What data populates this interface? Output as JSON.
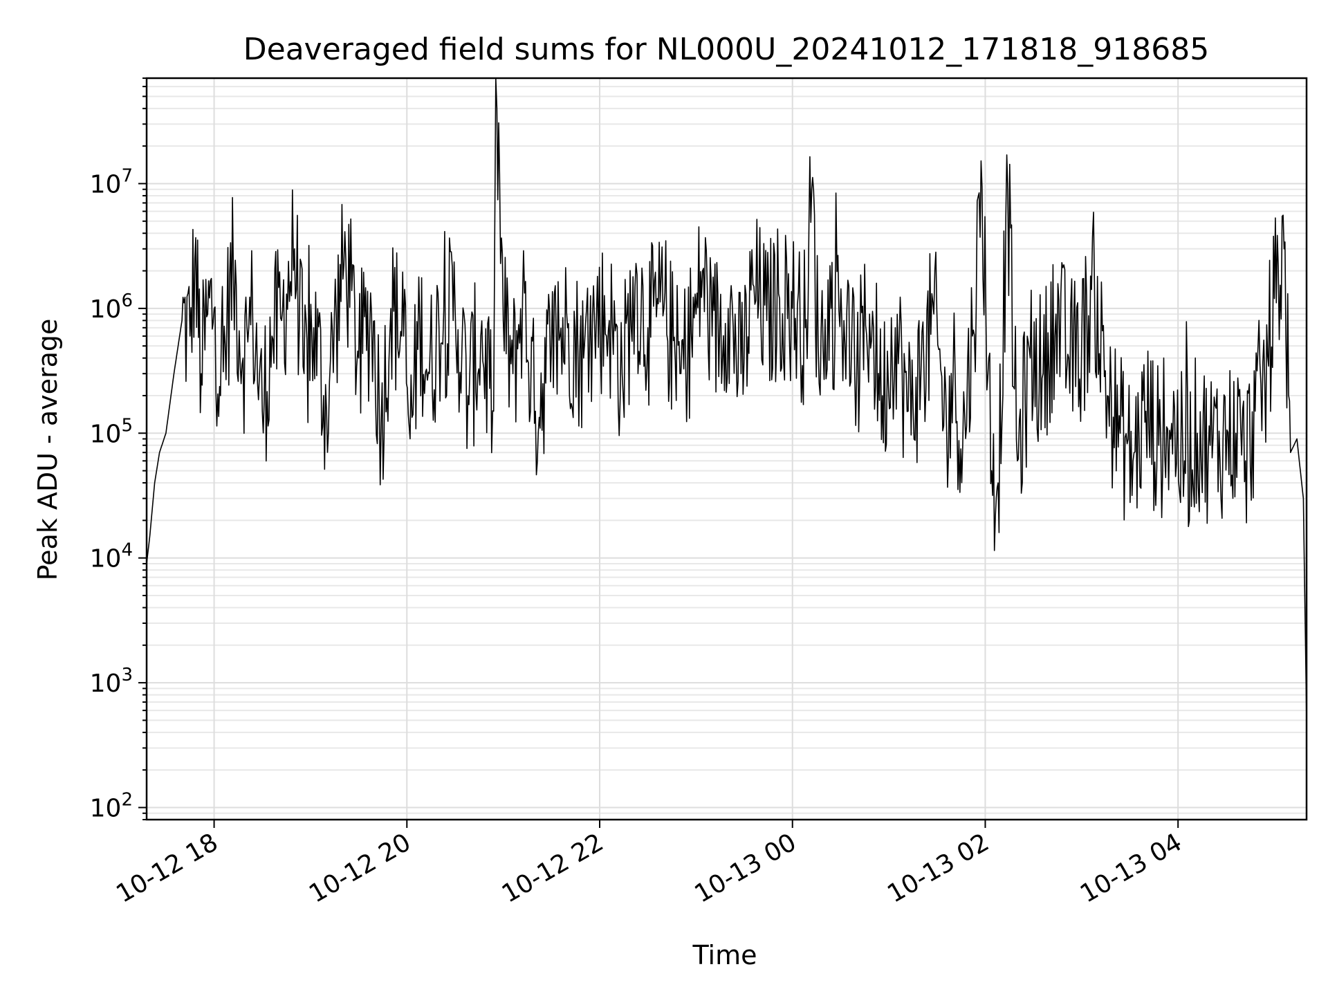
{
  "chart_data": {
    "type": "line",
    "title": "Deaveraged field sums for NL000U_20241012_171818_918685",
    "xlabel": "Time",
    "ylabel": "Peak ADU - average",
    "yscale": "log",
    "ylim": [
      80,
      70000000
    ],
    "xlim": [
      "2024-10-12 17:18",
      "2024-10-13 05:20"
    ],
    "grid": "on (major and minor)",
    "line_color": "#000000",
    "x_ticks": [
      {
        "label": "10-12 18",
        "time": "2024-10-12 18:00"
      },
      {
        "label": "10-12 20",
        "time": "2024-10-12 20:00"
      },
      {
        "label": "10-12 22",
        "time": "2024-10-12 22:00"
      },
      {
        "label": "10-13 00",
        "time": "2024-10-13 00:00"
      },
      {
        "label": "10-13 02",
        "time": "2024-10-13 02:00"
      },
      {
        "label": "10-13 04",
        "time": "2024-10-13 04:00"
      }
    ],
    "y_ticks": [
      {
        "base": "10",
        "exp": "2",
        "value": 100
      },
      {
        "base": "10",
        "exp": "3",
        "value": 1000
      },
      {
        "base": "10",
        "exp": "4",
        "value": 10000
      },
      {
        "base": "10",
        "exp": "5",
        "value": 100000
      },
      {
        "base": "10",
        "exp": "6",
        "value": 1000000
      },
      {
        "base": "10",
        "exp": "7",
        "value": 10000000
      }
    ],
    "series": [
      {
        "x": [
          "2024-10-12 17:18",
          "2024-10-12 17:20",
          "2024-10-12 17:23",
          "2024-10-12 17:26",
          "2024-10-12 17:30",
          "2024-10-12 17:35",
          "2024-10-12 17:40",
          "2024-10-12 17:45",
          "2024-10-12 17:48",
          "2024-10-12 17:52",
          "2024-10-12 17:56",
          "2024-10-12 18:00",
          "2024-10-12 18:04",
          "2024-10-12 18:08",
          "2024-10-12 18:12",
          "2024-10-12 18:18",
          "2024-10-12 18:24",
          "2024-10-12 18:30",
          "2024-10-12 18:36",
          "2024-10-12 18:42",
          "2024-10-12 18:50",
          "2024-10-12 18:56",
          "2024-10-12 19:02",
          "2024-10-12 19:10",
          "2024-10-12 19:16",
          "2024-10-12 19:22",
          "2024-10-12 19:30",
          "2024-10-12 19:38",
          "2024-10-12 19:44",
          "2024-10-12 19:50",
          "2024-10-12 19:58",
          "2024-10-12 20:02",
          "2024-10-12 20:08",
          "2024-10-12 20:14",
          "2024-10-12 20:20",
          "2024-10-12 20:30",
          "2024-10-12 20:38",
          "2024-10-12 20:46",
          "2024-10-12 20:54",
          "2024-10-12 20:56",
          "2024-10-12 21:00",
          "2024-10-12 21:06",
          "2024-10-12 21:12",
          "2024-10-12 21:20",
          "2024-10-12 21:30",
          "2024-10-12 21:40",
          "2024-10-12 21:50",
          "2024-10-12 21:58",
          "2024-10-12 22:06",
          "2024-10-12 22:14",
          "2024-10-12 22:22",
          "2024-10-12 22:30",
          "2024-10-12 22:40",
          "2024-10-12 22:50",
          "2024-10-12 23:00",
          "2024-10-12 23:04",
          "2024-10-12 23:10",
          "2024-10-12 23:20",
          "2024-10-12 23:28",
          "2024-10-12 23:36",
          "2024-10-12 23:44",
          "2024-10-12 23:52",
          "2024-10-13 00:00",
          "2024-10-13 00:08",
          "2024-10-13 00:12",
          "2024-10-13 00:16",
          "2024-10-13 00:24",
          "2024-10-13 00:32",
          "2024-10-13 00:40",
          "2024-10-13 00:48",
          "2024-10-13 00:56",
          "2024-10-13 01:04",
          "2024-10-13 01:12",
          "2024-10-13 01:20",
          "2024-10-13 01:28",
          "2024-10-13 01:36",
          "2024-10-13 01:40",
          "2024-10-13 01:46",
          "2024-10-13 01:52",
          "2024-10-13 01:58",
          "2024-10-13 02:04",
          "2024-10-13 02:08",
          "2024-10-13 02:14",
          "2024-10-13 02:20",
          "2024-10-13 02:28",
          "2024-10-13 02:36",
          "2024-10-13 02:44",
          "2024-10-13 02:52",
          "2024-10-13 03:00",
          "2024-10-13 03:08",
          "2024-10-13 03:16",
          "2024-10-13 03:24",
          "2024-10-13 03:32",
          "2024-10-13 03:40",
          "2024-10-13 03:48",
          "2024-10-13 03:56",
          "2024-10-13 04:04",
          "2024-10-13 04:12",
          "2024-10-13 04:20",
          "2024-10-13 04:28",
          "2024-10-13 04:36",
          "2024-10-13 04:42",
          "2024-10-13 04:48",
          "2024-10-13 04:54",
          "2024-10-13 05:00",
          "2024-10-13 05:06",
          "2024-10-13 05:10",
          "2024-10-13 05:14",
          "2024-10-13 05:18",
          "2024-10-13 05:20"
        ],
        "y": [
          9000,
          15000,
          40000,
          70000,
          100000,
          300000,
          800000,
          600000,
          2500000,
          300000,
          900000,
          1000000,
          200000,
          800000,
          2000000,
          400000,
          900000,
          150000,
          600000,
          800000,
          3000000,
          300000,
          700000,
          150000,
          900000,
          2500000,
          400000,
          900000,
          120000,
          1000000,
          600000,
          90000,
          800000,
          300000,
          700000,
          1000000,
          200000,
          600000,
          150000,
          40000000,
          800000,
          300000,
          1200000,
          150000,
          500000,
          700000,
          400000,
          900000,
          800000,
          300000,
          1500000,
          700000,
          1000000,
          300000,
          900000,
          2000000,
          600000,
          1000000,
          300000,
          1500000,
          800000,
          1200000,
          1000000,
          700000,
          9000000,
          500000,
          1000000,
          800000,
          300000,
          900000,
          200000,
          700000,
          150000,
          300000,
          900000,
          100000,
          300000,
          80000,
          600000,
          9500000,
          50000,
          40000,
          9000000,
          60000,
          400000,
          300000,
          900000,
          400000,
          500000,
          1500000,
          200000,
          100000,
          60000,
          150000,
          80000,
          120000,
          60000,
          100000,
          80000,
          90000,
          100000,
          60000,
          150000,
          250000,
          1200000,
          3000000,
          70000,
          90000,
          30000,
          500
        ]
      }
    ]
  }
}
